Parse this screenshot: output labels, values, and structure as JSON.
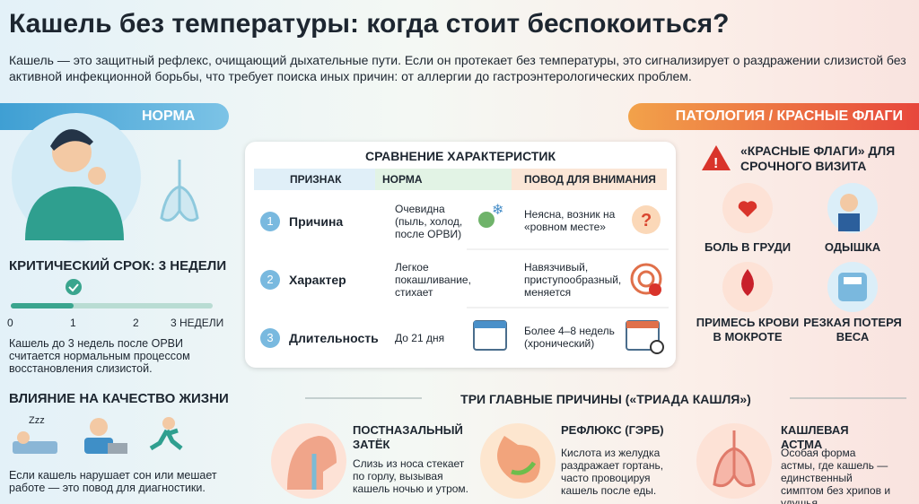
{
  "header": {
    "title": "Кашель без температуры: когда стоит беспокоиться?",
    "intro": "Кашель — это защитный рефлекс, очищающий дыхательные пути. Если он протекает без температуры, это сигнализирует о раздражении слизистой без активной инфекционной борьбы, что требует поиска иных причин: от аллергии до гастроэнтерологических проблем."
  },
  "left": {
    "heading": "НОРМА",
    "term_title": "КРИТИЧЕСКИЙ СРОК: 3 НЕДЕЛИ",
    "scale": [
      "0",
      "1",
      "2",
      "3 НЕДЕЛИ"
    ],
    "term_text": "Кашель до 3 недель после ОРВИ считается нормальным процессом восстановления слизистой.",
    "life_title": "ВЛИЯНИЕ НА КАЧЕСТВО ЖИЗНИ",
    "life_text": "Если кашель нарушает сон или мешает работе — это повод для диагностики."
  },
  "table": {
    "title": "СРАВНЕНИЕ ХАРАКТЕРИСТИК",
    "columns": [
      "ПРИЗНАК",
      "НОРМА",
      "ПОВОД ДЛЯ ВНИМАНИЯ"
    ],
    "rows": [
      [
        "1",
        "Причина",
        "Очевидна (пыль, холод, после ОРВИ)",
        "Неясна, возник на «ровном месте»"
      ],
      [
        "2",
        "Характер",
        "Легкое покашливание, стихает",
        "Навязчивый, приступообразный, меняется"
      ],
      [
        "3",
        "Длительность",
        "До 21 дня",
        "Более 4–8 недель (хронический)"
      ]
    ]
  },
  "right": {
    "heading": "ПАТОЛОГИЯ / КРАСНЫЕ ФЛАГИ",
    "flags_title": "«КРАСНЫЕ ФЛАГИ» ДЛЯ СРОЧНОГО ВИЗИТА",
    "flags": [
      "БОЛЬ В ГРУДИ",
      "ОДЫШКА",
      "ПРИМЕСЬ КРОВИ В МОКРОТЕ",
      "РЕЗКАЯ ПОТЕРЯ ВЕСА"
    ]
  },
  "causes": {
    "title": "ТРИ ГЛАВНЫЕ ПРИЧИНЫ («ТРИАДА КАШЛЯ»)",
    "items": [
      {
        "name": "ПОСТНАЗАЛЬНЫЙ ЗАТЁК",
        "text": "Слизь из носа стекает по горлу, вызывая кашель ночью и утром."
      },
      {
        "name": "РЕФЛЮКС (ГЭРБ)",
        "text": "Кислота из желудка раздражает гортань, часто провоцируя кашель после еды."
      },
      {
        "name": "КАШЛЕВАЯ АСТМА",
        "text": "Особая форма астмы, где кашель — единственный симптом без хрипов и удушья."
      }
    ]
  }
}
